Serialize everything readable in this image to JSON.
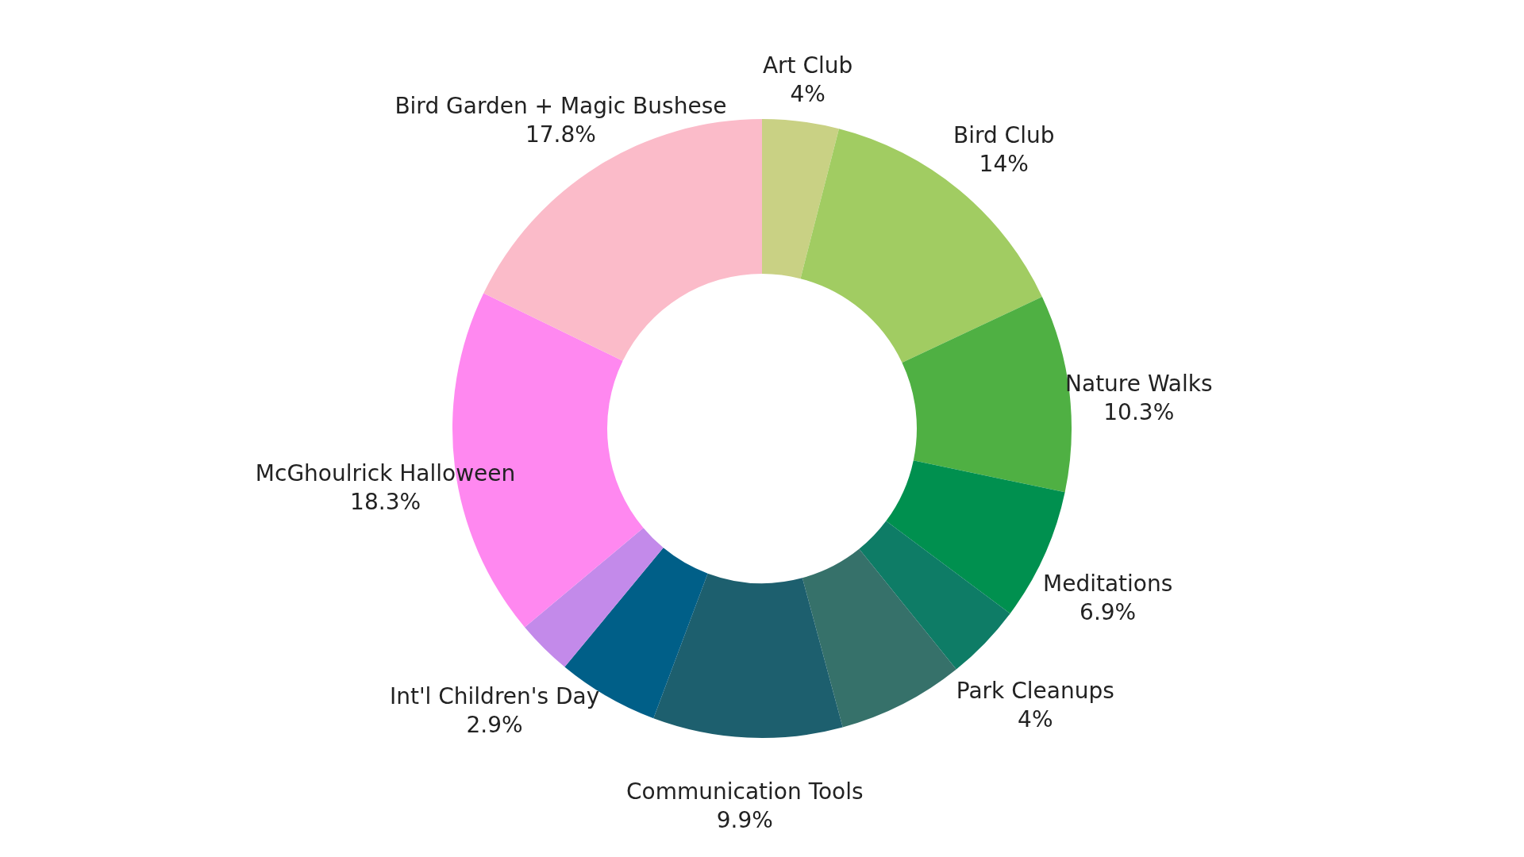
{
  "chart_data": {
    "type": "donut",
    "categories": [
      "Art Club",
      "Bird Club",
      "Nature Walks",
      "Meditations",
      "Park Cleanups",
      null,
      "Communication Tools",
      null,
      "Int'l Children's Day",
      "McGhoulrick Halloween",
      "Bird Garden + Magic Bushese"
    ],
    "values": [
      4,
      14,
      10.3,
      6.9,
      4,
      6.6,
      9.9,
      5.3,
      2.9,
      18.3,
      17.8
    ],
    "value_labels": [
      "4%",
      "14%",
      "10.3%",
      "6.9%",
      "4%",
      null,
      "9.9%",
      null,
      "2.9%",
      "18.3%",
      "17.8%"
    ],
    "colors": [
      "#c9d184",
      "#a1cc62",
      "#4fb043",
      "#00904f",
      "#0e7c66",
      "#36716a",
      "#1d5f6e",
      "#005f88",
      "#c38aea",
      "#ff88f0",
      "#fbbbc9"
    ]
  }
}
